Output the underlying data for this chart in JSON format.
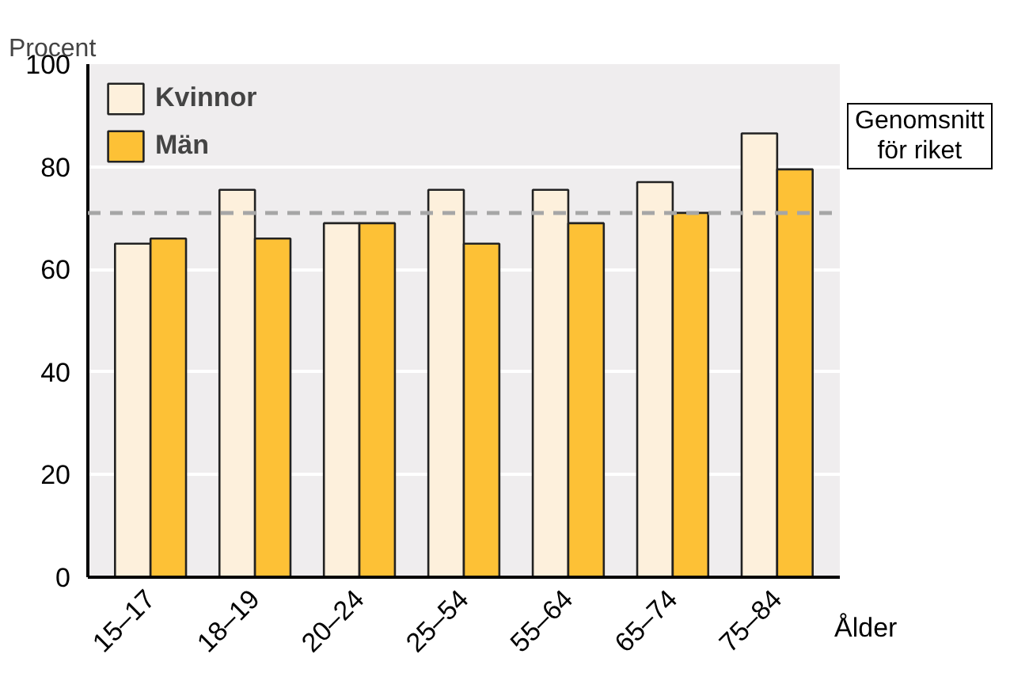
{
  "chart_data": {
    "type": "bar",
    "ylabel": "Procent",
    "xlabel": "Ålder",
    "categories": [
      "15–17",
      "18–19",
      "20–24",
      "25–54",
      "55–64",
      "65–74",
      "75–84"
    ],
    "series": [
      {
        "name": "Kvinnor",
        "color": "#fdf0dc",
        "values": [
          65,
          75.5,
          69,
          75.5,
          75.5,
          77,
          86.5
        ]
      },
      {
        "name": "Män",
        "color": "#fdc136",
        "values": [
          66,
          66,
          69,
          65,
          69,
          71,
          79.5
        ]
      }
    ],
    "ylim": [
      0,
      100
    ],
    "yticks": [
      0,
      20,
      40,
      60,
      80,
      100
    ],
    "grid": "y",
    "legend": "top left",
    "ref_lines": [
      {
        "axis": "y",
        "value": 71,
        "label": "Genomsnitt\nför riket",
        "color": "#a6a6a6",
        "line_style": "dashed"
      }
    ]
  }
}
